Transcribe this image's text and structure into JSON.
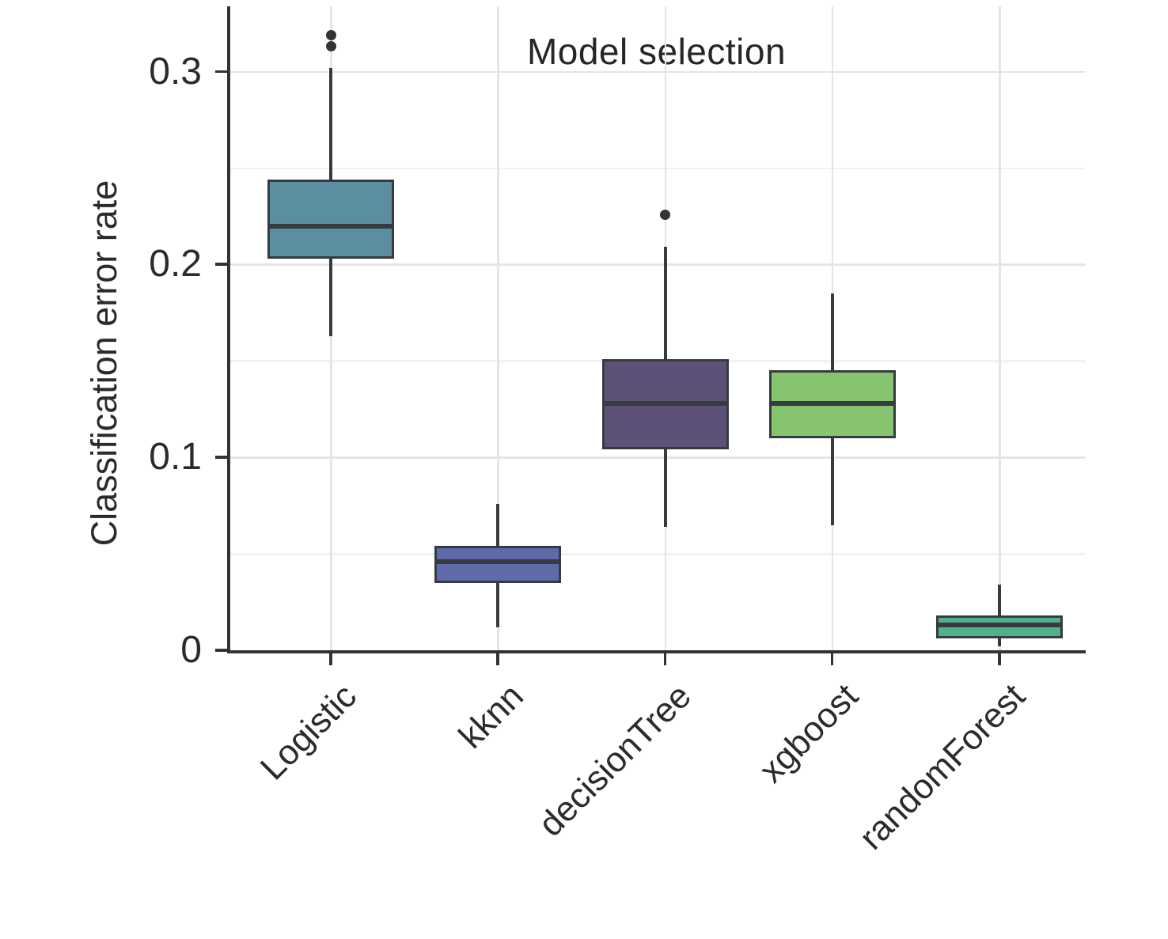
{
  "chart_data": {
    "type": "boxplot",
    "title": "Model selection",
    "ylabel": "Classification error rate",
    "xlabel": "",
    "categories": [
      "Logistic",
      "kknn",
      "decisionTree",
      "xgboost",
      "randomForest"
    ],
    "y_ticks": [
      0,
      0.1,
      0.2,
      0.3
    ],
    "y_tick_labels": [
      "0",
      "0.1",
      "0.2",
      "0.3"
    ],
    "y_minor_ticks": [
      0.05,
      0.15,
      0.25
    ],
    "ylim": [
      0,
      0.334
    ],
    "grid": "on",
    "legend": "none",
    "series": [
      {
        "name": "Logistic",
        "color": "#5b8ea1",
        "whisker_low": 0.163,
        "q1": 0.203,
        "median": 0.22,
        "q3": 0.244,
        "whisker_high": 0.302,
        "outliers": [
          0.313,
          0.319
        ]
      },
      {
        "name": "kknn",
        "color": "#5f6aab",
        "whisker_low": 0.012,
        "q1": 0.035,
        "median": 0.046,
        "q3": 0.054,
        "whisker_high": 0.076,
        "outliers": []
      },
      {
        "name": "decisionTree",
        "color": "#5d5177",
        "whisker_low": 0.064,
        "q1": 0.104,
        "median": 0.128,
        "q3": 0.151,
        "whisker_high": 0.209,
        "outliers": [
          0.226
        ]
      },
      {
        "name": "xgboost",
        "color": "#87c46f",
        "whisker_low": 0.065,
        "q1": 0.11,
        "median": 0.128,
        "q3": 0.145,
        "whisker_high": 0.185,
        "outliers": []
      },
      {
        "name": "randomForest",
        "color": "#52b08e",
        "whisker_low": 0.002,
        "q1": 0.006,
        "median": 0.013,
        "q3": 0.018,
        "whisker_high": 0.034,
        "outliers": []
      }
    ],
    "colors": {
      "box_border": "#373b40",
      "axis": "#303438",
      "grid_major": "#e5e5e5",
      "grid_minor": "#f1f1f1",
      "text": "#2b2b2b",
      "background": "#ffffff"
    }
  }
}
